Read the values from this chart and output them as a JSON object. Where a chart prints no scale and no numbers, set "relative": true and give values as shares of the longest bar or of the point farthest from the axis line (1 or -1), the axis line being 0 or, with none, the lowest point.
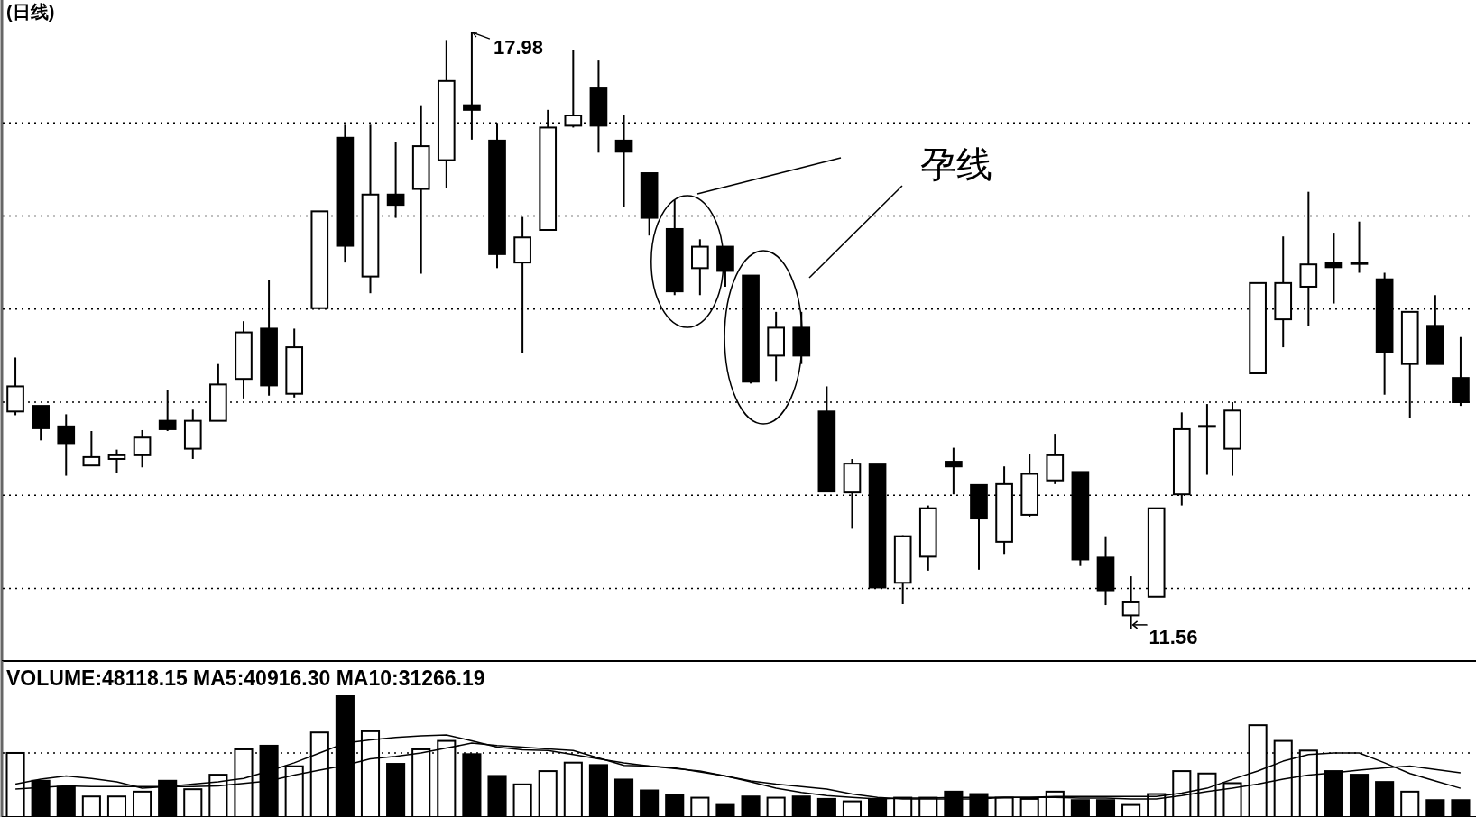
{
  "chart_data": [
    {
      "type": "candlestick",
      "title": "(日线)",
      "categories": [
        null,
        null,
        null,
        null,
        null,
        null,
        null,
        null,
        null,
        null,
        null,
        null,
        null,
        null,
        null,
        null,
        null,
        null,
        null,
        null,
        null,
        null,
        null,
        null,
        null,
        null,
        null,
        null,
        null,
        null,
        null,
        null,
        null,
        null,
        null,
        null,
        null,
        null,
        null,
        null,
        null,
        null,
        null,
        null,
        null,
        null,
        null,
        null,
        null,
        null,
        null,
        null,
        null,
        null,
        null,
        null,
        null,
        null
      ],
      "ohlc": [
        [
          13.9,
          14.48,
          13.86,
          14.17
        ],
        [
          13.96,
          13.96,
          13.59,
          13.72
        ],
        [
          13.74,
          13.87,
          13.21,
          13.56
        ],
        [
          13.32,
          13.69,
          13.32,
          13.41
        ],
        [
          13.39,
          13.49,
          13.24,
          13.43
        ],
        [
          13.43,
          13.7,
          13.3,
          13.62
        ],
        [
          13.8,
          14.13,
          13.69,
          13.71
        ],
        [
          13.5,
          13.92,
          13.39,
          13.8
        ],
        [
          13.8,
          14.41,
          13.8,
          14.19
        ],
        [
          14.25,
          14.87,
          14.04,
          14.75
        ],
        [
          14.79,
          15.31,
          14.07,
          14.18
        ],
        [
          14.09,
          14.79,
          14.05,
          14.59
        ],
        [
          15.01,
          16.05,
          15.01,
          16.05
        ],
        [
          16.84,
          16.98,
          15.5,
          15.68
        ],
        [
          15.35,
          16.98,
          15.17,
          16.23
        ],
        [
          16.23,
          16.79,
          15.98,
          16.12
        ],
        [
          16.29,
          17.19,
          15.38,
          16.75
        ],
        [
          16.6,
          17.89,
          16.3,
          17.45
        ],
        [
          17.19,
          17.98,
          16.82,
          17.14
        ],
        [
          16.81,
          17.0,
          15.44,
          15.59
        ],
        [
          15.5,
          15.99,
          14.53,
          15.77
        ],
        [
          15.85,
          17.14,
          15.85,
          16.95
        ],
        [
          16.97,
          17.78,
          16.95,
          17.08
        ],
        [
          17.37,
          17.67,
          16.68,
          16.97
        ],
        [
          16.81,
          17.08,
          16.1,
          16.69
        ],
        [
          16.46,
          16.46,
          15.79,
          15.98
        ],
        [
          15.86,
          16.17,
          15.15,
          15.19
        ],
        [
          15.44,
          15.75,
          15.15,
          15.67
        ],
        [
          15.67,
          15.67,
          15.24,
          15.41
        ],
        [
          15.36,
          15.36,
          14.2,
          14.22
        ],
        [
          14.5,
          14.97,
          14.22,
          14.8
        ],
        [
          14.8,
          14.97,
          14.41,
          14.5
        ],
        [
          13.9,
          14.17,
          13.04,
          13.04
        ],
        [
          13.03,
          13.39,
          12.64,
          13.34
        ],
        [
          13.34,
          13.34,
          12.01,
          12.01
        ],
        [
          12.06,
          12.57,
          11.83,
          12.56
        ],
        [
          12.34,
          12.89,
          12.19,
          12.86
        ],
        [
          13.36,
          13.51,
          13.01,
          13.31
        ],
        [
          13.11,
          13.11,
          12.2,
          12.75
        ],
        [
          12.5,
          13.31,
          12.37,
          13.12
        ],
        [
          12.79,
          13.44,
          12.77,
          13.23
        ],
        [
          13.16,
          13.66,
          13.12,
          13.43
        ],
        [
          13.25,
          13.25,
          12.24,
          12.31
        ],
        [
          12.33,
          12.56,
          11.82,
          11.98
        ],
        [
          11.71,
          12.13,
          11.56,
          11.85
        ],
        [
          11.91,
          12.86,
          11.91,
          12.86
        ],
        [
          13.01,
          13.89,
          12.89,
          13.71
        ],
        [
          13.74,
          13.98,
          13.22,
          13.74
        ],
        [
          13.5,
          14.0,
          13.21,
          13.91
        ],
        [
          14.31,
          15.28,
          14.31,
          15.28
        ],
        [
          14.89,
          15.78,
          14.59,
          15.28
        ],
        [
          15.24,
          16.26,
          14.82,
          15.48
        ],
        [
          15.5,
          15.82,
          15.06,
          15.45
        ],
        [
          15.49,
          15.94,
          15.39,
          15.49
        ],
        [
          15.32,
          15.39,
          14.08,
          14.54
        ],
        [
          14.41,
          14.97,
          13.83,
          14.97
        ],
        [
          14.82,
          15.15,
          14.41,
          14.41
        ],
        [
          14.26,
          14.7,
          13.96,
          14.0
        ]
      ],
      "ylim": [
        11.22,
        18.32
      ],
      "yticks": [
        {
          "value": 12,
          "label": null
        },
        {
          "value": 13,
          "label": null
        },
        {
          "value": 14,
          "label": null
        },
        {
          "value": 15,
          "label": null
        },
        {
          "value": 16,
          "label": null
        },
        {
          "value": 17,
          "label": null
        }
      ],
      "grid": "y",
      "annotations": [
        "17.98",
        "11.56",
        "孕线"
      ]
    },
    {
      "type": "bar",
      "relative": true,
      "title": "VOLUME:48118.15 MA5:40916.30 MA10:31266.19",
      "categories": [
        null,
        null,
        null,
        null,
        null,
        null,
        null,
        null,
        null,
        null,
        null,
        null,
        null,
        null,
        null,
        null,
        null,
        null,
        null,
        null,
        null,
        null,
        null,
        null,
        null,
        null,
        null,
        null,
        null,
        null,
        null,
        null,
        null,
        null,
        null,
        null,
        null,
        null,
        null,
        null,
        null,
        null,
        null,
        null,
        null,
        null,
        null,
        null,
        null,
        null,
        null,
        null,
        null,
        null,
        null,
        null,
        null,
        null
      ],
      "values": [
        0.53,
        0.3,
        0.25,
        0.17,
        0.17,
        0.21,
        0.3,
        0.23,
        0.35,
        0.56,
        0.59,
        0.42,
        0.7,
        1.0,
        0.71,
        0.44,
        0.56,
        0.63,
        0.52,
        0.34,
        0.27,
        0.38,
        0.45,
        0.43,
        0.31,
        0.22,
        0.18,
        0.16,
        0.1,
        0.17,
        0.16,
        0.17,
        0.15,
        0.13,
        0.15,
        0.16,
        0.16,
        0.21,
        0.19,
        0.16,
        0.15,
        0.21,
        0.14,
        0.14,
        0.1,
        0.19,
        0.38,
        0.36,
        0.28,
        0.76,
        0.63,
        0.55,
        0.38,
        0.35,
        0.29,
        0.21,
        0.14,
        0.14
      ],
      "colors": [
        "#ffffff",
        "#000000",
        "#000000",
        "#ffffff",
        "#ffffff",
        "#ffffff",
        "#000000",
        "#ffffff",
        "#ffffff",
        "#ffffff",
        "#000000",
        "#ffffff",
        "#ffffff",
        "#000000",
        "#ffffff",
        "#000000",
        "#ffffff",
        "#ffffff",
        "#000000",
        "#000000",
        "#ffffff",
        "#ffffff",
        "#ffffff",
        "#000000",
        "#000000",
        "#000000",
        "#000000",
        "#ffffff",
        "#000000",
        "#000000",
        "#ffffff",
        "#000000",
        "#000000",
        "#ffffff",
        "#000000",
        "#ffffff",
        "#ffffff",
        "#000000",
        "#000000",
        "#ffffff",
        "#ffffff",
        "#ffffff",
        "#000000",
        "#000000",
        "#ffffff",
        "#ffffff",
        "#ffffff",
        "#ffffff",
        "#ffffff",
        "#ffffff",
        "#ffffff",
        "#ffffff",
        "#000000",
        "#000000",
        "#000000",
        "#ffffff",
        "#000000",
        "#000000"
      ],
      "ref_lines": [
        {
          "axis": "y",
          "value": 0.53,
          "line_style": "dotted",
          "color": "#000000"
        }
      ]
    },
    {
      "type": "line",
      "relative": true,
      "categories": [
        null,
        null,
        null,
        null,
        null,
        null,
        null,
        null,
        null,
        null,
        null,
        null,
        null,
        null,
        null,
        null,
        null,
        null,
        null,
        null,
        null,
        null,
        null,
        null,
        null,
        null,
        null,
        null,
        null,
        null,
        null,
        null,
        null,
        null,
        null,
        null,
        null,
        null,
        null,
        null,
        null,
        null,
        null,
        null,
        null,
        null,
        null,
        null,
        null,
        null,
        null,
        null,
        null,
        null,
        null,
        null,
        null,
        null
      ],
      "series": [
        {
          "color": "#000000",
          "values": [
            0.4,
            0.46,
            0.5,
            0.47,
            0.43,
            0.35,
            0.37,
            0.4,
            0.43,
            0.47,
            0.56,
            0.66,
            0.78,
            0.9,
            0.94,
            0.97,
            0.99,
            1.0,
            0.93,
            0.85,
            0.82,
            0.81,
            0.76,
            0.71,
            0.66,
            0.62,
            0.59,
            0.56,
            0.5,
            0.44,
            0.4,
            0.37,
            0.34,
            0.28,
            0.24,
            0.22,
            0.22,
            0.22,
            0.22,
            0.24,
            0.24,
            0.25,
            0.25,
            0.25,
            0.25,
            0.25,
            0.29,
            0.35,
            0.46,
            0.56,
            0.68,
            0.76,
            0.78,
            0.78,
            0.66,
            0.53,
            0.44,
            0.35
          ]
        },
        {
          "color": "#000000",
          "values": [
            0.34,
            0.36,
            0.38,
            0.37,
            0.37,
            0.37,
            0.37,
            0.37,
            0.38,
            0.41,
            0.44,
            0.51,
            0.57,
            0.63,
            0.71,
            0.74,
            0.78,
            0.84,
            0.9,
            0.87,
            0.85,
            0.83,
            0.81,
            0.72,
            0.63,
            0.62,
            0.6,
            0.55,
            0.5,
            0.43,
            0.35,
            0.3,
            0.26,
            0.24,
            0.22,
            0.23,
            0.23,
            0.24,
            0.24,
            0.24,
            0.24,
            0.24,
            0.23,
            0.23,
            0.22,
            0.22,
            0.26,
            0.31,
            0.35,
            0.4,
            0.46,
            0.51,
            0.54,
            0.57,
            0.6,
            0.62,
            0.58,
            0.54
          ]
        }
      ]
    }
  ]
}
